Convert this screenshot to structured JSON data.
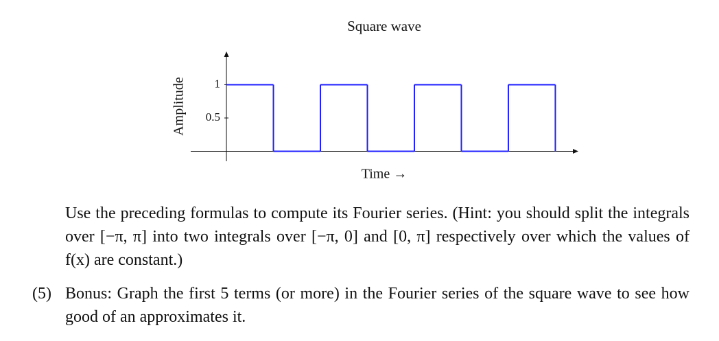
{
  "chart_data": {
    "type": "step",
    "title": "Square wave",
    "xlabel": "Time →",
    "ylabel": "Amplitude",
    "x": [
      0,
      1,
      2,
      3,
      4,
      5,
      6
    ],
    "values": [
      1,
      0,
      1,
      0,
      1,
      0,
      1
    ],
    "color": "#1f1fff",
    "xlim": [
      -0.76,
      7.49
    ],
    "ylim": [
      -0.15,
      1.5
    ],
    "yticks": [
      0.5,
      1
    ]
  },
  "document": {
    "paragraph": "Use the preceding formulas to compute its Fourier series. (Hint: you should split the integrals over [−π, π] into two integrals over [−π, 0] and [0, π] respectively over which the values of f(x) are constant.)",
    "item": {
      "number": "(5)",
      "text": "Bonus: Graph the first 5 terms (or more) in the Fourier series of the square wave to see how good of an approximates it."
    }
  }
}
